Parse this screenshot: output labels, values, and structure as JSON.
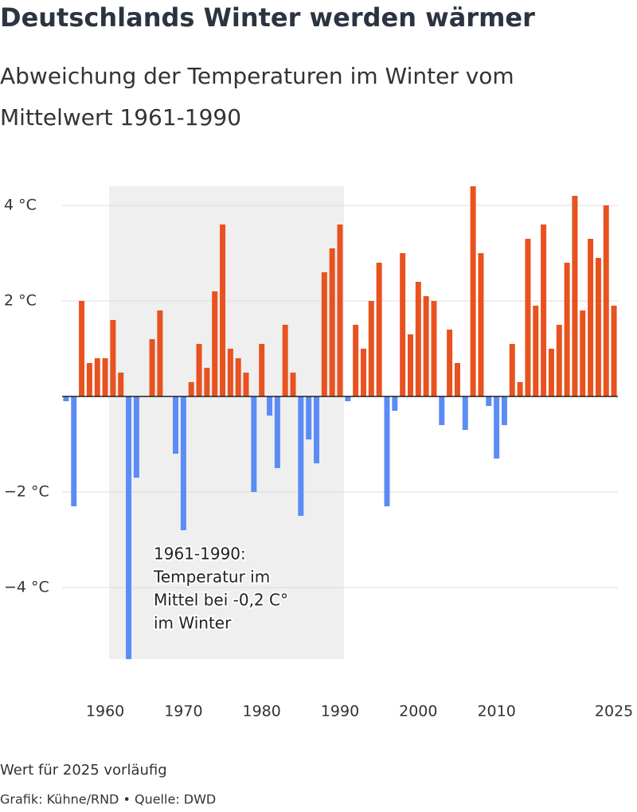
{
  "chart_data": {
    "type": "bar",
    "title": "Deutschlands Winter werden wärmer",
    "subtitle": [
      "Abweichung der Temperaturen im Winter vom",
      "Mittelwert 1961-1990"
    ],
    "x": [
      1955,
      1956,
      1957,
      1958,
      1959,
      1960,
      1961,
      1962,
      1963,
      1964,
      1965,
      1966,
      1967,
      1968,
      1969,
      1970,
      1971,
      1972,
      1973,
      1974,
      1975,
      1976,
      1977,
      1978,
      1979,
      1980,
      1981,
      1982,
      1983,
      1984,
      1985,
      1986,
      1987,
      1988,
      1989,
      1990,
      1991,
      1992,
      1993,
      1994,
      1995,
      1996,
      1997,
      1998,
      1999,
      2000,
      2001,
      2002,
      2003,
      2004,
      2005,
      2006,
      2007,
      2008,
      2009,
      2010,
      2011,
      2012,
      2013,
      2014,
      2015,
      2016,
      2017,
      2018,
      2019,
      2020,
      2021,
      2022,
      2023,
      2024,
      2025
    ],
    "values": [
      -0.1,
      -2.3,
      2.0,
      0.7,
      0.8,
      0.8,
      1.6,
      0.5,
      -5.5,
      -1.7,
      0.0,
      1.2,
      1.8,
      0.0,
      -1.2,
      -2.8,
      0.3,
      1.1,
      0.6,
      2.2,
      3.6,
      1.0,
      0.8,
      0.5,
      -2.0,
      1.1,
      -0.4,
      -1.5,
      1.5,
      0.5,
      -2.5,
      -0.9,
      -1.4,
      2.6,
      3.1,
      3.6,
      -0.1,
      1.5,
      1.0,
      2.0,
      2.8,
      -2.3,
      -0.3,
      3.0,
      1.3,
      2.4,
      2.1,
      2.0,
      -0.6,
      1.4,
      0.7,
      -0.7,
      4.4,
      3.0,
      -0.2,
      -1.3,
      -0.6,
      1.1,
      0.3,
      3.3,
      1.9,
      3.6,
      1.0,
      1.5,
      2.8,
      4.2,
      1.8,
      3.3,
      2.9,
      4.0,
      1.9
    ],
    "positive_color": "#e8521f",
    "negative_color": "#5b8cf5",
    "xlim": [
      1954.5,
      2025.5
    ],
    "xticks": [
      1960,
      1970,
      1980,
      1990,
      2000,
      2010,
      2025
    ],
    "ylim": [
      -5.5,
      4.4
    ],
    "yticks": [
      {
        "value": 4,
        "label": "4 °C"
      },
      {
        "value": 2,
        "label": "2 °C"
      },
      {
        "value": -2,
        "label": "−2 °C"
      },
      {
        "value": -4,
        "label": "−4 °C"
      }
    ],
    "grid": true,
    "highlight_range": [
      1961,
      1990
    ],
    "annotation": [
      "1961-1990:",
      "Temperatur im",
      "Mittel bei -0,2 C°",
      "im Winter"
    ],
    "note": "Wert für 2025 vorläufig",
    "source": "Grafik: Kühne/RND • Quelle: DWD"
  }
}
